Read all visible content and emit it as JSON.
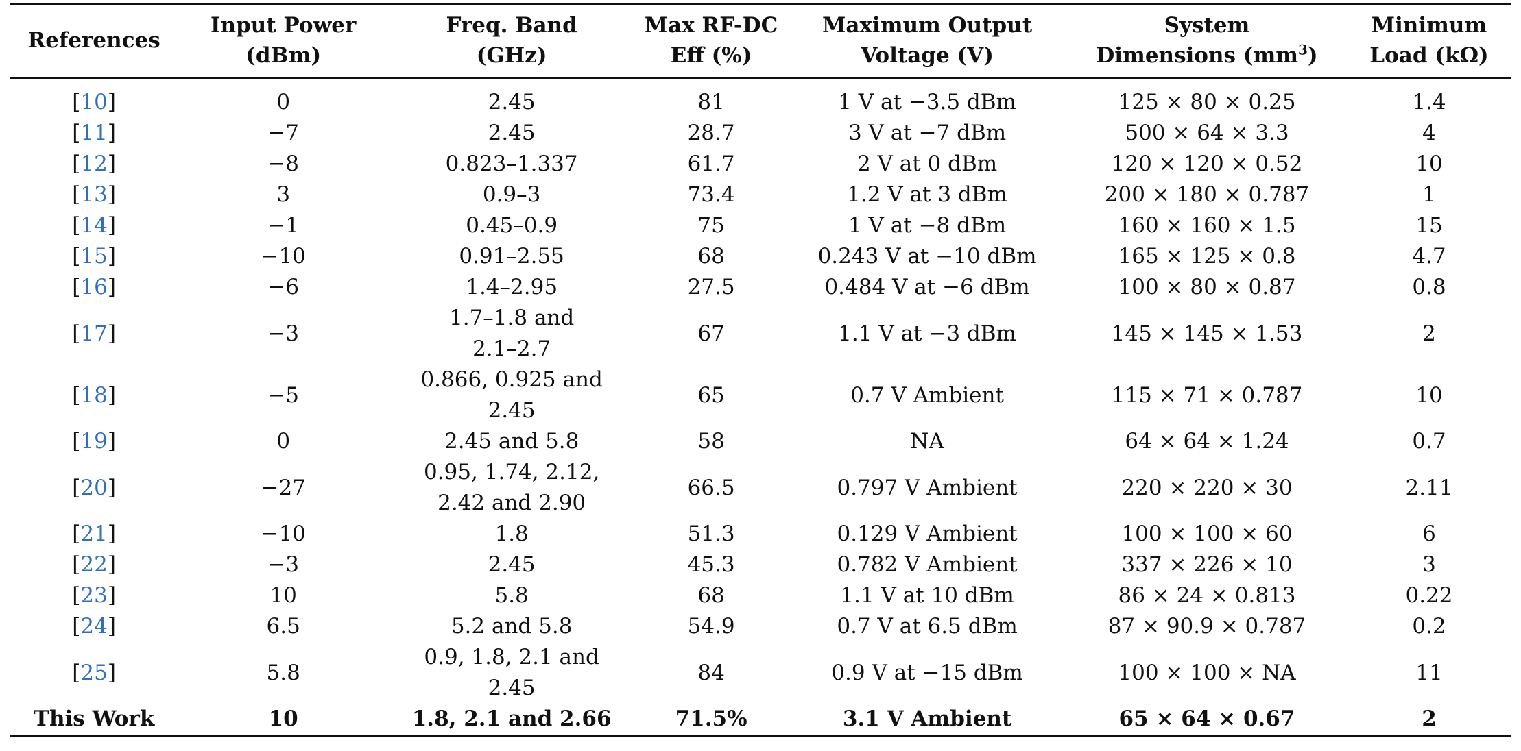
{
  "headers": [
    {
      "line1": "References",
      "line2": ""
    },
    {
      "line1": "Input Power",
      "line2": "(dBm)"
    },
    {
      "line1": "Freq. Band",
      "line2": "(GHz)"
    },
    {
      "line1": "Max RF-DC",
      "line2": "Eff (%)"
    },
    {
      "line1": "Maximum Output",
      "line2": "Voltage (V)"
    },
    {
      "line1": "System",
      "line2": "Dimensions (mm",
      "sup": "3",
      "after_sup": ")"
    },
    {
      "line1": "Minimum",
      "line2": "Load (kΩ)"
    }
  ],
  "rows": [
    {
      "ref": "10",
      "power": "0",
      "band": [
        "2.45"
      ],
      "eff": "81",
      "voltage": "1 V at −3.5 dBm",
      "dims": "125 × 80 × 0.25",
      "load": "1.4"
    },
    {
      "ref": "11",
      "power": "−7",
      "band": [
        "2.45"
      ],
      "eff": "28.7",
      "voltage": "3 V at −7 dBm",
      "dims": "500 × 64 × 3.3",
      "load": "4"
    },
    {
      "ref": "12",
      "power": "−8",
      "band": [
        "0.823–1.337"
      ],
      "eff": "61.7",
      "voltage": "2 V at 0 dBm",
      "dims": "120 × 120 × 0.52",
      "load": "10"
    },
    {
      "ref": "13",
      "power": "3",
      "band": [
        "0.9–3"
      ],
      "eff": "73.4",
      "voltage": "1.2 V at 3 dBm",
      "dims": "200 × 180 × 0.787",
      "load": "1"
    },
    {
      "ref": "14",
      "power": "−1",
      "band": [
        "0.45–0.9"
      ],
      "eff": "75",
      "voltage": "1 V at −8 dBm",
      "dims": "160 × 160 × 1.5",
      "load": "15"
    },
    {
      "ref": "15",
      "power": "−10",
      "band": [
        "0.91–2.55"
      ],
      "eff": "68",
      "voltage": "0.243 V at −10 dBm",
      "dims": "165 × 125 × 0.8",
      "load": "4.7"
    },
    {
      "ref": "16",
      "power": "−6",
      "band": [
        "1.4–2.95"
      ],
      "eff": "27.5",
      "voltage": "0.484 V at −6 dBm",
      "dims": "100 × 80 × 0.87",
      "load": "0.8"
    },
    {
      "ref": "17",
      "power": "−3",
      "band": [
        "1.7–1.8 and",
        "2.1–2.7"
      ],
      "eff": "67",
      "voltage": "1.1 V at −3 dBm",
      "dims": "145 × 145 × 1.53",
      "load": "2"
    },
    {
      "ref": "18",
      "power": "−5",
      "band": [
        "0.866, 0.925 and",
        "2.45"
      ],
      "eff": "65",
      "voltage": "0.7 V Ambient",
      "dims": "115 × 71 × 0.787",
      "load": "10"
    },
    {
      "ref": "19",
      "power": "0",
      "band": [
        "2.45 and 5.8"
      ],
      "eff": "58",
      "voltage": "NA",
      "dims": "64 × 64 × 1.24",
      "load": "0.7"
    },
    {
      "ref": "20",
      "power": "−27",
      "band": [
        "0.95, 1.74, 2.12,",
        "2.42 and 2.90"
      ],
      "eff": "66.5",
      "voltage": "0.797 V Ambient",
      "dims": "220 × 220 × 30",
      "load": "2.11"
    },
    {
      "ref": "21",
      "power": "−10",
      "band": [
        "1.8"
      ],
      "eff": "51.3",
      "voltage": "0.129 V Ambient",
      "dims": "100 × 100 × 60",
      "load": "6"
    },
    {
      "ref": "22",
      "power": "−3",
      "band": [
        "2.45"
      ],
      "eff": "45.3",
      "voltage": "0.782 V Ambient",
      "dims": "337 × 226 × 10",
      "load": "3"
    },
    {
      "ref": "23",
      "power": "10",
      "band": [
        "5.8"
      ],
      "eff": "68",
      "voltage": "1.1 V at 10 dBm",
      "dims": "86 × 24 × 0.813",
      "load": "0.22"
    },
    {
      "ref": "24",
      "power": "6.5",
      "band": [
        "5.2 and 5.8"
      ],
      "eff": "54.9",
      "voltage": "0.7 V at 6.5 dBm",
      "dims": "87 × 90.9 × 0.787",
      "load": "0.2"
    },
    {
      "ref": "25",
      "power": "5.8",
      "band": [
        "0.9, 1.8, 2.1 and",
        "2.45"
      ],
      "eff": "84",
      "voltage": "0.9 V at −15 dBm",
      "dims": "100 × 100 × NA",
      "load": "11"
    }
  ],
  "this_work": {
    "label": "This Work",
    "power": "10",
    "band": "1.8, 2.1 and 2.66",
    "eff": "71.5%",
    "voltage": "3.1 V Ambient",
    "dims": "65 × 64 × 0.67",
    "load": "2"
  },
  "colors": {
    "link": "#2f6fbf",
    "text": "#111111",
    "rule": "#111111"
  }
}
